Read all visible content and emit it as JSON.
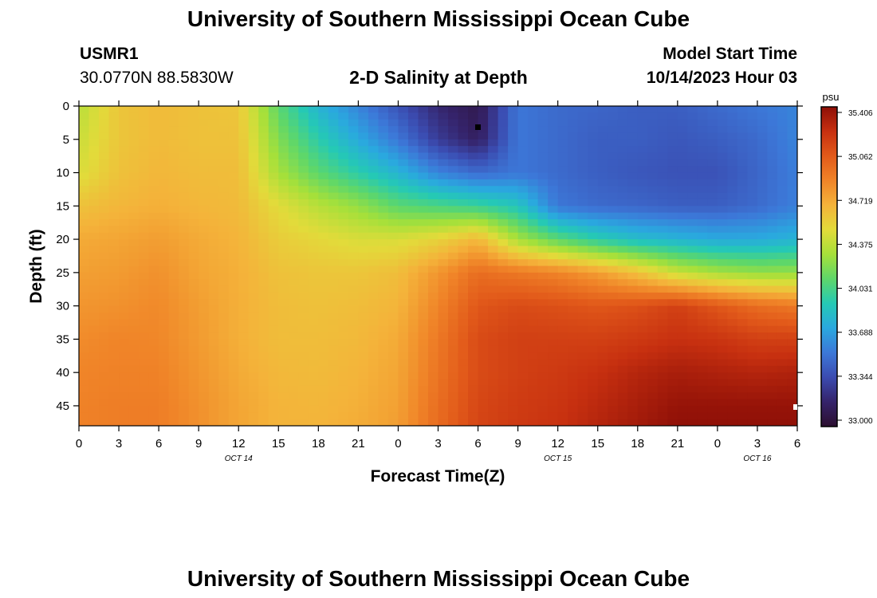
{
  "header": {
    "title": "University of Southern Mississippi Ocean Cube",
    "station_id": "USMR1",
    "coordinates": "30.0770N  88.5830W",
    "subtitle": "2-D Salinity at Depth",
    "model_label": "Model Start Time",
    "model_start": "10/14/2023 Hour 03"
  },
  "footer": {
    "title": "University of Southern Mississippi Ocean Cube"
  },
  "chart_data": {
    "type": "heatmap",
    "title": "2-D Salinity at Depth",
    "xlabel": "Forecast Time(Z)",
    "ylabel": "Depth (ft)",
    "xlim": [
      0,
      54
    ],
    "ylim": [
      0,
      48
    ],
    "x_ticks": [
      {
        "value": 0,
        "label": "0"
      },
      {
        "value": 3,
        "label": "3"
      },
      {
        "value": 6,
        "label": "6"
      },
      {
        "value": 9,
        "label": "9"
      },
      {
        "value": 12,
        "label": "12"
      },
      {
        "value": 15,
        "label": "15"
      },
      {
        "value": 18,
        "label": "18"
      },
      {
        "value": 21,
        "label": "21"
      },
      {
        "value": 24,
        "label": "0"
      },
      {
        "value": 27,
        "label": "3"
      },
      {
        "value": 30,
        "label": "6"
      },
      {
        "value": 33,
        "label": "9"
      },
      {
        "value": 36,
        "label": "12"
      },
      {
        "value": 39,
        "label": "15"
      },
      {
        "value": 42,
        "label": "18"
      },
      {
        "value": 45,
        "label": "21"
      },
      {
        "value": 48,
        "label": "0"
      },
      {
        "value": 51,
        "label": "3"
      },
      {
        "value": 54,
        "label": "6"
      }
    ],
    "date_labels": [
      {
        "value": 12,
        "label": "OCT 14"
      },
      {
        "value": 36,
        "label": "OCT 15"
      },
      {
        "value": 51,
        "label": "OCT 16"
      }
    ],
    "y_ticks": [
      0,
      5,
      10,
      15,
      20,
      25,
      30,
      35,
      40,
      45
    ],
    "colorbar": {
      "unit": "psu",
      "min": 33.0,
      "max": 35.406,
      "tick_labels": [
        "35.406",
        "35.062",
        "34.719",
        "34.375",
        "34.031",
        "33.688",
        "33.344",
        "33.000"
      ],
      "colors": [
        "#2c0f2f",
        "#35236a",
        "#3b4bb0",
        "#3c78d8",
        "#2aa8df",
        "#25c9b5",
        "#5ed76a",
        "#a6e03a",
        "#e2db3a",
        "#f4b33a",
        "#f08428",
        "#e25a1a",
        "#c73010",
        "#8e0f07"
      ]
    },
    "series_x_hours": [
      0,
      3,
      6,
      9,
      12,
      15,
      18,
      21,
      24,
      27,
      30,
      33,
      36,
      39,
      42,
      45,
      48,
      51,
      54
    ],
    "depth_levels_ft": [
      0,
      5,
      10,
      15,
      20,
      25,
      30,
      35,
      40,
      45,
      48
    ],
    "salinity_psu": [
      [
        34.35,
        34.58,
        34.63,
        34.6,
        34.58,
        34.1,
        33.8,
        33.6,
        33.4,
        33.2,
        33.1,
        33.55,
        33.5,
        33.48,
        33.45,
        33.45,
        33.5,
        33.55,
        33.6
      ],
      [
        34.4,
        34.58,
        34.63,
        34.6,
        34.6,
        34.2,
        33.95,
        33.75,
        33.55,
        33.3,
        33.15,
        33.55,
        33.5,
        33.45,
        33.45,
        33.42,
        33.45,
        33.5,
        33.6
      ],
      [
        34.45,
        34.6,
        34.65,
        34.62,
        34.62,
        34.3,
        34.1,
        33.95,
        33.8,
        33.6,
        33.5,
        33.55,
        33.5,
        33.45,
        33.42,
        33.4,
        33.4,
        33.48,
        33.58
      ],
      [
        34.6,
        34.65,
        34.68,
        34.65,
        34.63,
        34.48,
        34.35,
        34.25,
        34.1,
        34.05,
        34.0,
        33.9,
        33.55,
        33.5,
        33.48,
        33.45,
        33.45,
        33.5,
        33.58
      ],
      [
        34.7,
        34.72,
        34.75,
        34.7,
        34.66,
        34.55,
        34.5,
        34.45,
        34.45,
        34.52,
        34.65,
        34.3,
        34.1,
        33.95,
        33.85,
        33.8,
        33.75,
        33.75,
        33.8
      ],
      [
        34.74,
        34.76,
        34.8,
        34.72,
        34.68,
        34.6,
        34.58,
        34.58,
        34.62,
        34.78,
        34.95,
        34.9,
        34.85,
        34.75,
        34.6,
        34.4,
        34.3,
        34.25,
        34.25
      ],
      [
        34.78,
        34.8,
        34.83,
        34.75,
        34.68,
        34.62,
        34.6,
        34.62,
        34.66,
        34.85,
        35.05,
        35.1,
        35.08,
        35.05,
        35.08,
        35.15,
        35.05,
        34.95,
        34.9
      ],
      [
        34.82,
        34.85,
        34.84,
        34.76,
        34.68,
        34.62,
        34.62,
        34.64,
        34.7,
        34.9,
        35.1,
        35.15,
        35.15,
        35.15,
        35.18,
        35.22,
        35.2,
        35.15,
        35.15
      ],
      [
        34.85,
        34.86,
        34.86,
        34.78,
        34.7,
        34.64,
        34.63,
        34.66,
        34.72,
        34.92,
        35.1,
        35.15,
        35.18,
        35.22,
        35.28,
        35.32,
        35.3,
        35.28,
        35.3
      ],
      [
        34.86,
        34.88,
        34.88,
        34.8,
        34.72,
        34.66,
        34.65,
        34.68,
        34.74,
        34.95,
        35.12,
        35.17,
        35.2,
        35.26,
        35.32,
        35.38,
        35.38,
        35.38,
        35.38
      ],
      [
        34.86,
        34.88,
        34.88,
        34.8,
        34.72,
        34.66,
        34.66,
        34.69,
        34.75,
        34.96,
        35.13,
        35.18,
        35.21,
        35.28,
        35.34,
        35.4,
        35.4,
        35.4,
        35.4
      ]
    ]
  }
}
